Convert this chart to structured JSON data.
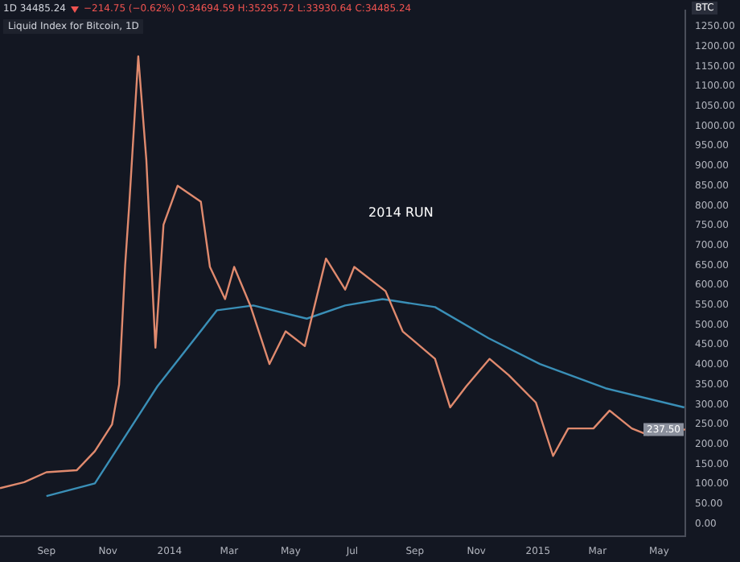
{
  "chart_data": {
    "type": "line",
    "title": "Liquid Index for Bitcoin, 1D",
    "ylabel": "BTC",
    "annotations": [
      "1D 34485.24",
      "−214.75 (−0.62%) O:34694.59 H:35295.72 L:33930.64 C:34485.24",
      "2014 RUN",
      {
        "text": "237.50",
        "x": "2015-05-27",
        "y": 237.5
      }
    ],
    "series": [
      {
        "color": "#e08a6e",
        "x": [
          "2013-07-17",
          "2013-08-10",
          "2013-09-01",
          "2013-10-01",
          "2013-10-19",
          "2013-11-05",
          "2013-11-12",
          "2013-11-18",
          "2013-11-22",
          "2013-12-01",
          "2013-12-09",
          "2013-12-18",
          "2013-12-26",
          "2014-01-09",
          "2014-02-01",
          "2014-02-10",
          "2014-02-25",
          "2014-03-06",
          "2014-03-22",
          "2014-04-10",
          "2014-04-26",
          "2014-05-15",
          "2014-06-05",
          "2014-06-24",
          "2014-07-03",
          "2014-08-03",
          "2014-08-20",
          "2014-09-21",
          "2014-10-06",
          "2014-10-22",
          "2014-11-14",
          "2014-12-03",
          "2014-12-30",
          "2015-01-16",
          "2015-01-31",
          "2015-02-25",
          "2015-03-13",
          "2015-04-04",
          "2015-04-20",
          "2015-05-27"
        ],
        "values": [
          90,
          105,
          130,
          135,
          183,
          250,
          350,
          650,
          800,
          1175,
          915,
          443,
          752,
          850,
          810,
          646,
          565,
          646,
          549,
          402,
          484,
          447,
          667,
          589,
          646,
          585,
          484,
          415,
          293,
          346,
          415,
          374,
          305,
          171,
          240,
          240,
          285,
          240,
          224,
          237.5
        ]
      },
      {
        "color": "#3a8fb7",
        "x": [
          "2013-09-01",
          "2013-10-19",
          "2013-12-20",
          "2014-02-17",
          "2014-03-25",
          "2014-05-17",
          "2014-06-24",
          "2014-07-31",
          "2014-08-11",
          "2014-09-21",
          "2014-11-13",
          "2015-01-03",
          "2015-03-09",
          "2015-05-26"
        ],
        "values": [
          70,
          102,
          346,
          537,
          549,
          516,
          549,
          565,
          561,
          545,
          467,
          402,
          341,
          293
        ]
      }
    ],
    "xlim": [
      "2013-07-17",
      "2015-05-27"
    ],
    "xticks": [
      {
        "value": "2013-09-01",
        "label": "Sep"
      },
      {
        "value": "2013-11-01",
        "label": "Nov"
      },
      {
        "value": "2014-01-01",
        "label": "2014"
      },
      {
        "value": "2014-03-01",
        "label": "Mar"
      },
      {
        "value": "2014-05-01",
        "label": "May"
      },
      {
        "value": "2014-07-01",
        "label": "Jul"
      },
      {
        "value": "2014-09-01",
        "label": "Sep"
      },
      {
        "value": "2014-11-01",
        "label": "Nov"
      },
      {
        "value": "2015-01-01",
        "label": "2015"
      },
      {
        "value": "2015-03-01",
        "label": "Mar"
      },
      {
        "value": "2015-05-01",
        "label": "May"
      }
    ],
    "ylim": [
      -30,
      1290
    ],
    "yticks": [
      {
        "value": 0,
        "label": "0.00"
      },
      {
        "value": 50,
        "label": "50.00"
      },
      {
        "value": 100,
        "label": "100.00"
      },
      {
        "value": 150,
        "label": "150.00"
      },
      {
        "value": 200,
        "label": "200.00"
      },
      {
        "value": 250,
        "label": "250.00"
      },
      {
        "value": 300,
        "label": "300.00"
      },
      {
        "value": 350,
        "label": "350.00"
      },
      {
        "value": 400,
        "label": "400.00"
      },
      {
        "value": 450,
        "label": "450.00"
      },
      {
        "value": 500,
        "label": "500.00"
      },
      {
        "value": 550,
        "label": "550.00"
      },
      {
        "value": 600,
        "label": "600.00"
      },
      {
        "value": 650,
        "label": "650.00"
      },
      {
        "value": 700,
        "label": "700.00"
      },
      {
        "value": 750,
        "label": "750.00"
      },
      {
        "value": 800,
        "label": "800.00"
      },
      {
        "value": 850,
        "label": "850.00"
      },
      {
        "value": 900,
        "label": "900.00"
      },
      {
        "value": 950,
        "label": "950.00"
      },
      {
        "value": 1000,
        "label": "1000.00"
      },
      {
        "value": 1050,
        "label": "1050.00"
      },
      {
        "value": 1100,
        "label": "1100.00"
      },
      {
        "value": 1150,
        "label": "1150.00"
      },
      {
        "value": 1200,
        "label": "1200.00"
      },
      {
        "value": 1250,
        "label": "1250.00"
      }
    ],
    "grid": false,
    "legend": false,
    "marker": "none",
    "line_style": "solid"
  }
}
